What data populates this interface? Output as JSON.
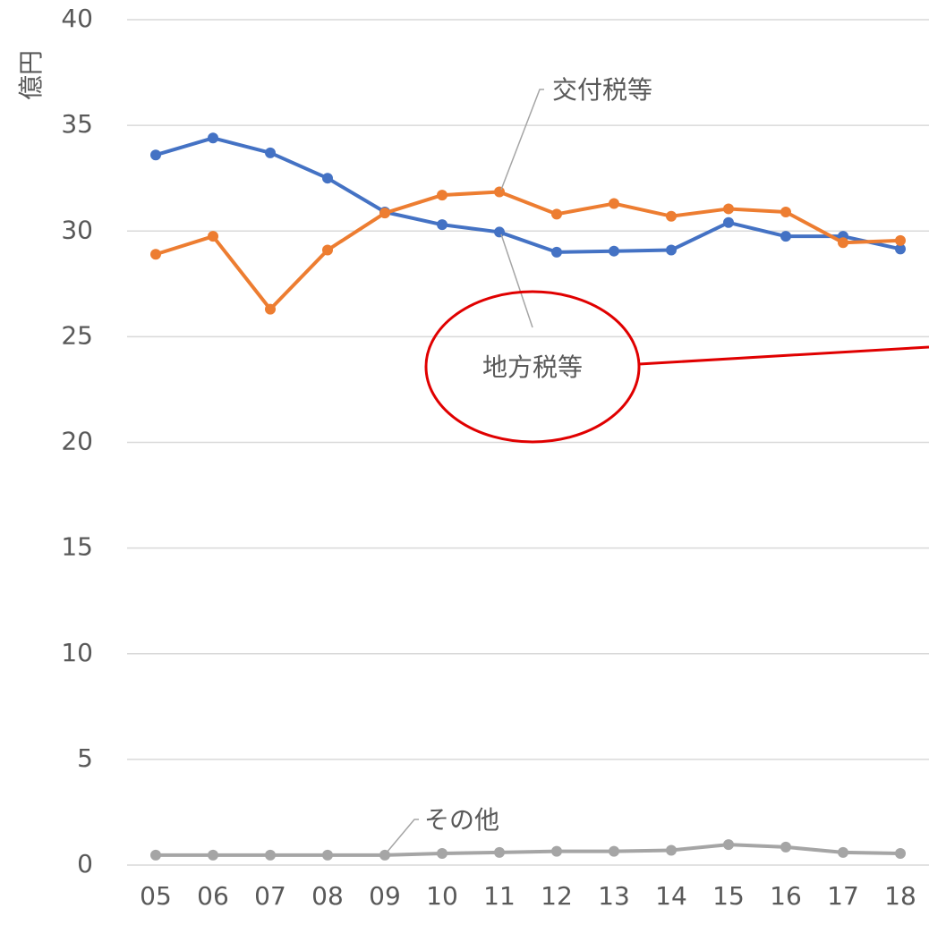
{
  "chart_data": {
    "type": "line",
    "y_label": "億円",
    "categories": [
      "05",
      "06",
      "07",
      "08",
      "09",
      "10",
      "11",
      "12",
      "13",
      "14",
      "15",
      "16",
      "17",
      "18"
    ],
    "series": [
      {
        "name": "地方税等",
        "color": "#4472c4",
        "values": [
          33.6,
          34.4,
          33.7,
          32.5,
          30.9,
          30.3,
          29.95,
          29.0,
          29.05,
          29.1,
          30.4,
          29.75,
          29.75,
          29.15
        ]
      },
      {
        "name": "交付税等",
        "color": "#ed7d31",
        "values": [
          28.9,
          29.75,
          26.3,
          29.1,
          30.85,
          31.7,
          31.85,
          30.8,
          31.3,
          30.7,
          31.05,
          30.9,
          29.45,
          29.55
        ]
      },
      {
        "name": "その他",
        "color": "#a5a5a5",
        "values": [
          0.47,
          0.47,
          0.47,
          0.47,
          0.47,
          0.55,
          0.6,
          0.65,
          0.65,
          0.7,
          0.97,
          0.85,
          0.6,
          0.55
        ]
      }
    ],
    "ylim": [
      0,
      40
    ],
    "yticks": [
      0,
      5,
      10,
      15,
      20,
      25,
      30,
      35,
      40
    ],
    "grid": true
  }
}
